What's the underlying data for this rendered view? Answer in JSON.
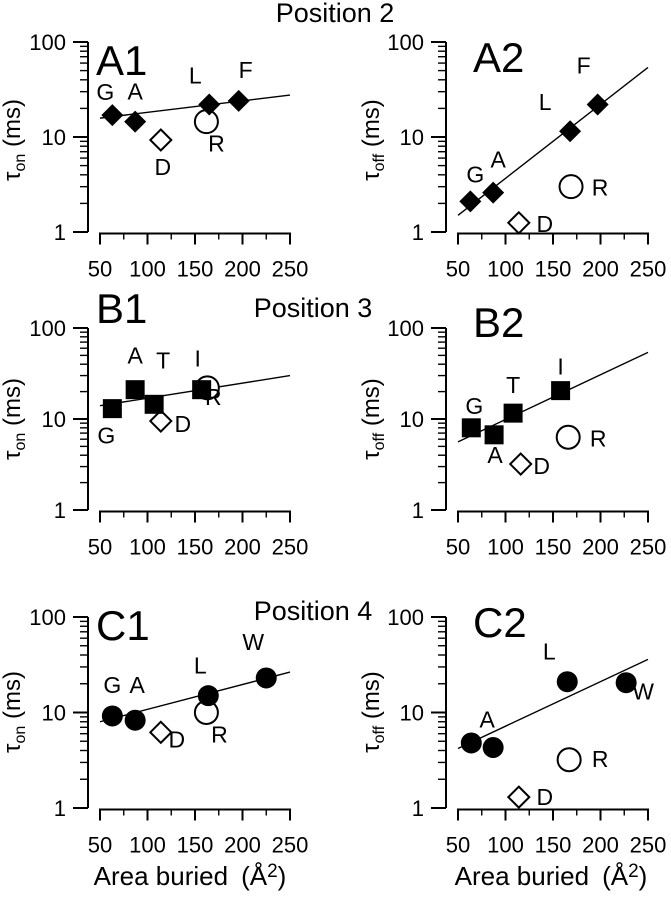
{
  "figure_titles": [
    "Position 2",
    "Position 3",
    "Position 4"
  ],
  "x_axis_label": {
    "text": "Area buried",
    "unit_open": "(Å",
    "unit_sup": "2",
    "unit_close": ")"
  },
  "y_axis_label": {
    "tau": "τ",
    "unit": " (ms)"
  },
  "colors": {
    "foreground": "#000000",
    "background": "#ffffff"
  },
  "chart_data": [
    {
      "id": "A1",
      "type": "scatter",
      "row": 0,
      "col": 0,
      "row_title": "Position 2",
      "marker": "diamond",
      "xscale": "linear",
      "yscale": "log",
      "xlabel": "Area buried (Å2)",
      "ylabel": "τon (ms)",
      "ylabel_sub": "on",
      "xlim": [
        50,
        250
      ],
      "ylim": [
        1,
        100
      ],
      "x_ticks": [
        50,
        100,
        150,
        200,
        250
      ],
      "x_minor_ticks": [
        75,
        125,
        175,
        225
      ],
      "y_ticks": [
        1,
        10,
        100
      ],
      "points": [
        {
          "label": "G",
          "x": 63,
          "y": 17,
          "style": "filled",
          "label_offset": [
            -7,
            -15
          ]
        },
        {
          "label": "A",
          "x": 87,
          "y": 14.5,
          "style": "filled",
          "label_offset": [
            0,
            -22
          ]
        },
        {
          "label": "L",
          "x": 165,
          "y": 22,
          "style": "filled",
          "label_offset": [
            -14,
            -21
          ]
        },
        {
          "label": "F",
          "x": 196,
          "y": 24,
          "style": "filled",
          "label_offset": [
            7,
            -23
          ]
        },
        {
          "label": "R",
          "x": 162,
          "y": 14.5,
          "style": "open-circle",
          "label_offset": [
            10,
            30
          ]
        },
        {
          "label": "D",
          "x": 114,
          "y": 9.3,
          "style": "open-diamond",
          "label_offset": [
            2,
            35
          ]
        }
      ],
      "fit_line": {
        "x1": 50,
        "y1": 15.8,
        "x2": 250,
        "y2": 27.6
      }
    },
    {
      "id": "A2",
      "type": "scatter",
      "row": 0,
      "col": 1,
      "row_title": "Position 2",
      "marker": "diamond",
      "xscale": "linear",
      "yscale": "log",
      "xlabel": "Area buried (Å2)",
      "ylabel": "τoff (ms)",
      "ylabel_sub": "off",
      "xlim": [
        50,
        250
      ],
      "ylim": [
        1,
        100
      ],
      "x_ticks": [
        50,
        100,
        150,
        200,
        250
      ],
      "x_minor_ticks": [
        75,
        125,
        175,
        225
      ],
      "y_ticks": [
        1,
        10,
        100
      ],
      "points": [
        {
          "label": "G",
          "x": 63,
          "y": 2.1,
          "style": "filled",
          "label_offset": [
            5,
            -19
          ]
        },
        {
          "label": "A",
          "x": 87,
          "y": 2.6,
          "style": "filled",
          "label_offset": [
            5,
            -25
          ]
        },
        {
          "label": "L",
          "x": 168,
          "y": 11.5,
          "style": "filled",
          "label_offset": [
            -25,
            -21
          ]
        },
        {
          "label": "F",
          "x": 197,
          "y": 22,
          "style": "filled",
          "label_offset": [
            -14,
            -31
          ]
        },
        {
          "label": "R",
          "x": 169,
          "y": 3.0,
          "style": "open-circle",
          "label_offset": [
            29,
            9
          ]
        },
        {
          "label": "D",
          "x": 114,
          "y": 1.25,
          "style": "open-diamond",
          "label_offset": [
            26,
            9
          ]
        }
      ],
      "fit_line": {
        "x1": 50,
        "y1": 1.5,
        "x2": 250,
        "y2": 54
      }
    },
    {
      "id": "B1",
      "type": "scatter",
      "row": 1,
      "col": 0,
      "row_title": "Position 3",
      "marker": "square",
      "xscale": "linear",
      "yscale": "log",
      "xlabel": "Area buried (Å2)",
      "ylabel": "τon (ms)",
      "ylabel_sub": "on",
      "xlim": [
        50,
        250
      ],
      "ylim": [
        1,
        100
      ],
      "x_ticks": [
        50,
        100,
        150,
        200,
        250
      ],
      "x_minor_ticks": [
        75,
        125,
        175,
        225
      ],
      "y_ticks": [
        1,
        10,
        100
      ],
      "points": [
        {
          "label": "G",
          "x": 63,
          "y": 13,
          "style": "filled",
          "label_offset": [
            -6,
            35
          ]
        },
        {
          "label": "A",
          "x": 87,
          "y": 21,
          "style": "filled",
          "label_offset": [
            0,
            -26
          ]
        },
        {
          "label": "T",
          "x": 107,
          "y": 14.5,
          "style": "filled",
          "label_offset": [
            9,
            -36
          ]
        },
        {
          "label": "I",
          "x": 157,
          "y": 21,
          "style": "filled",
          "label_offset": [
            -4,
            -23
          ]
        },
        {
          "label": "R",
          "x": 163,
          "y": 22,
          "style": "open-circle",
          "label_offset": [
            6,
            17
          ]
        },
        {
          "label": "D",
          "x": 114,
          "y": 9.5,
          "style": "open-diamond",
          "label_offset": [
            22,
            11
          ]
        }
      ],
      "fit_line": {
        "x1": 50,
        "y1": 14,
        "x2": 250,
        "y2": 30
      }
    },
    {
      "id": "B2",
      "type": "scatter",
      "row": 1,
      "col": 1,
      "row_title": "Position 3",
      "marker": "square",
      "xscale": "linear",
      "yscale": "log",
      "xlabel": "Area buried (Å2)",
      "ylabel": "τoff (ms)",
      "ylabel_sub": "off",
      "xlim": [
        50,
        250
      ],
      "ylim": [
        1,
        100
      ],
      "x_ticks": [
        50,
        100,
        150,
        200,
        250
      ],
      "x_minor_ticks": [
        75,
        125,
        175,
        225
      ],
      "y_ticks": [
        1,
        10,
        100
      ],
      "points": [
        {
          "label": "G",
          "x": 64,
          "y": 8.0,
          "style": "filled",
          "label_offset": [
            3,
            -14
          ]
        },
        {
          "label": "A",
          "x": 88,
          "y": 6.7,
          "style": "filled",
          "label_offset": [
            1,
            28
          ]
        },
        {
          "label": "T",
          "x": 108,
          "y": 11.6,
          "style": "filled",
          "label_offset": [
            0,
            -20
          ]
        },
        {
          "label": "I",
          "x": 158,
          "y": 20.5,
          "style": "filled",
          "label_offset": [
            0,
            -16
          ]
        },
        {
          "label": "R",
          "x": 166,
          "y": 6.3,
          "style": "open-circle",
          "label_offset": [
            30,
            9
          ]
        },
        {
          "label": "D",
          "x": 116,
          "y": 3.2,
          "style": "open-diamond",
          "label_offset": [
            21,
            10
          ]
        }
      ],
      "fit_line": {
        "x1": 50,
        "y1": 5.6,
        "x2": 250,
        "y2": 54
      }
    },
    {
      "id": "C1",
      "type": "scatter",
      "row": 2,
      "col": 0,
      "row_title": "Position 4",
      "marker": "circle",
      "xscale": "linear",
      "yscale": "log",
      "xlabel": "Area buried (Å2)",
      "ylabel": "τon (ms)",
      "ylabel_sub": "on",
      "xlim": [
        50,
        250
      ],
      "ylim": [
        1,
        100
      ],
      "x_ticks": [
        50,
        100,
        150,
        200,
        250
      ],
      "x_minor_ticks": [
        75,
        125,
        175,
        225
      ],
      "y_ticks": [
        1,
        10,
        100
      ],
      "points": [
        {
          "label": "G",
          "x": 63,
          "y": 9.2,
          "style": "filled",
          "label_offset": [
            0,
            -23
          ]
        },
        {
          "label": "A",
          "x": 87,
          "y": 8.3,
          "style": "filled",
          "label_offset": [
            2,
            -27
          ]
        },
        {
          "label": "L",
          "x": 164,
          "y": 15,
          "style": "filled",
          "label_offset": [
            -8,
            -22
          ]
        },
        {
          "label": "W",
          "x": 225,
          "y": 23,
          "style": "filled",
          "label_offset": [
            -13,
            -28
          ]
        },
        {
          "label": "R",
          "x": 162,
          "y": 10,
          "style": "open-circle",
          "label_offset": [
            13,
            30
          ]
        },
        {
          "label": "D",
          "x": 114,
          "y": 6.2,
          "style": "open-diamond",
          "label_offset": [
            16,
            15
          ]
        }
      ],
      "fit_line": {
        "x1": 50,
        "y1": 8,
        "x2": 250,
        "y2": 26.5
      }
    },
    {
      "id": "C2",
      "type": "scatter",
      "row": 2,
      "col": 1,
      "row_title": "Position 4",
      "marker": "circle",
      "xscale": "linear",
      "yscale": "log",
      "xlabel": "Area buried (Å2)",
      "ylabel": "τoff (ms)",
      "ylabel_sub": "off",
      "xlim": [
        50,
        250
      ],
      "ylim": [
        1,
        100
      ],
      "x_ticks": [
        50,
        100,
        150,
        200,
        250
      ],
      "x_minor_ticks": [
        75,
        125,
        175,
        225
      ],
      "y_ticks": [
        1,
        10,
        100
      ],
      "points": [
        {
          "label": "",
          "x": 64,
          "y": 4.8,
          "style": "filled",
          "label_offset": [
            0,
            0
          ]
        },
        {
          "label": "A",
          "x": 87,
          "y": 4.3,
          "style": "filled",
          "label_offset": [
            -6,
            -20
          ]
        },
        {
          "label": "L",
          "x": 165,
          "y": 21,
          "style": "filled",
          "label_offset": [
            -18,
            -22
          ]
        },
        {
          "label": "W",
          "x": 227,
          "y": 20.5,
          "style": "filled",
          "label_offset": [
            17,
            17
          ]
        },
        {
          "label": "R",
          "x": 167,
          "y": 3.2,
          "style": "open-circle",
          "label_offset": [
            31,
            7
          ]
        },
        {
          "label": "D",
          "x": 114,
          "y": 1.3,
          "style": "open-diamond",
          "label_offset": [
            26,
            8
          ]
        }
      ],
      "fit_line": {
        "x1": 50,
        "y1": 4.2,
        "x2": 250,
        "y2": 36
      }
    }
  ]
}
